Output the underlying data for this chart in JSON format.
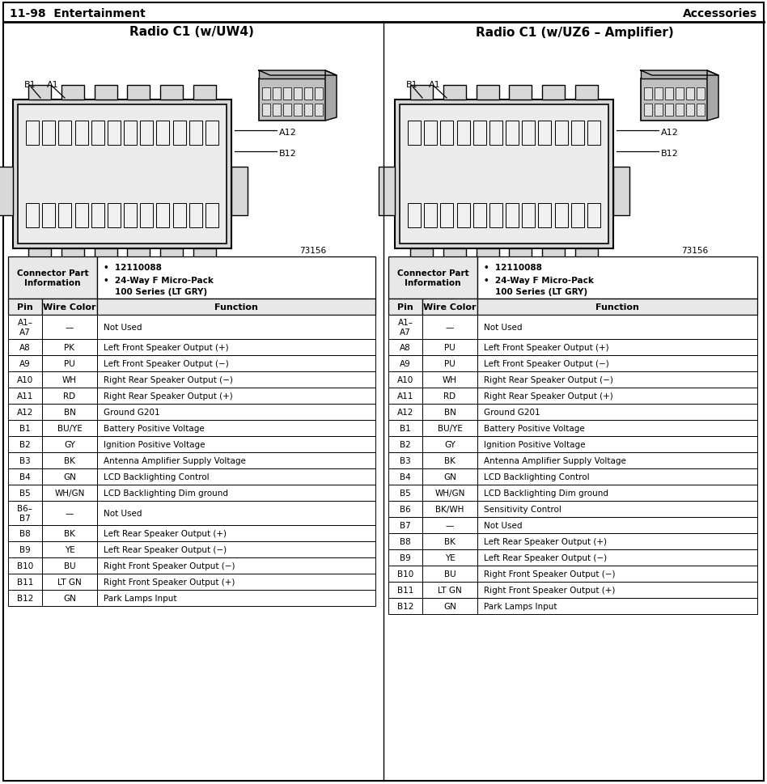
{
  "title_left": "11-98  Entertainment",
  "title_right": "Accessories",
  "diagram1_title": "Radio C1 (w/UW4)",
  "diagram2_title": "Radio C1 (w/UZ6 – Amplifier)",
  "connector_info_label": "Connector Part\nInformation",
  "bullet1": "12110088",
  "bullet2": "24-Way F Micro-Pack\n100 Series (LT GRY)",
  "col_headers": [
    "Pin",
    "Wire Color",
    "Function"
  ],
  "part_number": "73156",
  "table1_rows": [
    [
      "A1–\nA7",
      "—",
      "Not Used"
    ],
    [
      "A8",
      "PK",
      "Left Front Speaker Output (+)"
    ],
    [
      "A9",
      "PU",
      "Left Front Speaker Output (−)"
    ],
    [
      "A10",
      "WH",
      "Right Rear Speaker Output (−)"
    ],
    [
      "A11",
      "RD",
      "Right Rear Speaker Output (+)"
    ],
    [
      "A12",
      "BN",
      "Ground G201"
    ],
    [
      "B1",
      "BU/YE",
      "Battery Positive Voltage"
    ],
    [
      "B2",
      "GY",
      "Ignition Positive Voltage"
    ],
    [
      "B3",
      "BK",
      "Antenna Amplifier Supply Voltage"
    ],
    [
      "B4",
      "GN",
      "LCD Backlighting Control"
    ],
    [
      "B5",
      "WH/GN",
      "LCD Backlighting Dim ground"
    ],
    [
      "B6–\nB7",
      "—",
      "Not Used"
    ],
    [
      "B8",
      "BK",
      "Left Rear Speaker Output (+)"
    ],
    [
      "B9",
      "YE",
      "Left Rear Speaker Output (−)"
    ],
    [
      "B10",
      "BU",
      "Right Front Speaker Output (−)"
    ],
    [
      "B11",
      "LT GN",
      "Right Front Speaker Output (+)"
    ],
    [
      "B12",
      "GN",
      "Park Lamps Input"
    ]
  ],
  "table2_rows": [
    [
      "A1–\nA7",
      "—",
      "Not Used"
    ],
    [
      "A8",
      "PU",
      "Left Front Speaker Output (+)"
    ],
    [
      "A9",
      "PU",
      "Left Front Speaker Output (−)"
    ],
    [
      "A10",
      "WH",
      "Right Rear Speaker Output (−)"
    ],
    [
      "A11",
      "RD",
      "Right Rear Speaker Output (+)"
    ],
    [
      "A12",
      "BN",
      "Ground G201"
    ],
    [
      "B1",
      "BU/YE",
      "Battery Positive Voltage"
    ],
    [
      "B2",
      "GY",
      "Ignition Positive Voltage"
    ],
    [
      "B3",
      "BK",
      "Antenna Amplifier Supply Voltage"
    ],
    [
      "B4",
      "GN",
      "LCD Backlighting Control"
    ],
    [
      "B5",
      "WH/GN",
      "LCD Backlighting Dim ground"
    ],
    [
      "B6",
      "BK/WH",
      "Sensitivity Control"
    ],
    [
      "B7",
      "—",
      "Not Used"
    ],
    [
      "B8",
      "BK",
      "Left Rear Speaker Output (+)"
    ],
    [
      "B9",
      "YE",
      "Left Rear Speaker Output (−)"
    ],
    [
      "B10",
      "BU",
      "Right Front Speaker Output (−)"
    ],
    [
      "B11",
      "LT GN",
      "Right Front Speaker Output (+)"
    ],
    [
      "B12",
      "GN",
      "Park Lamps Input"
    ]
  ],
  "bg_color": "#e8e8e8",
  "white": "#ffffff",
  "border_color": "#000000",
  "divider_color": "#555555"
}
